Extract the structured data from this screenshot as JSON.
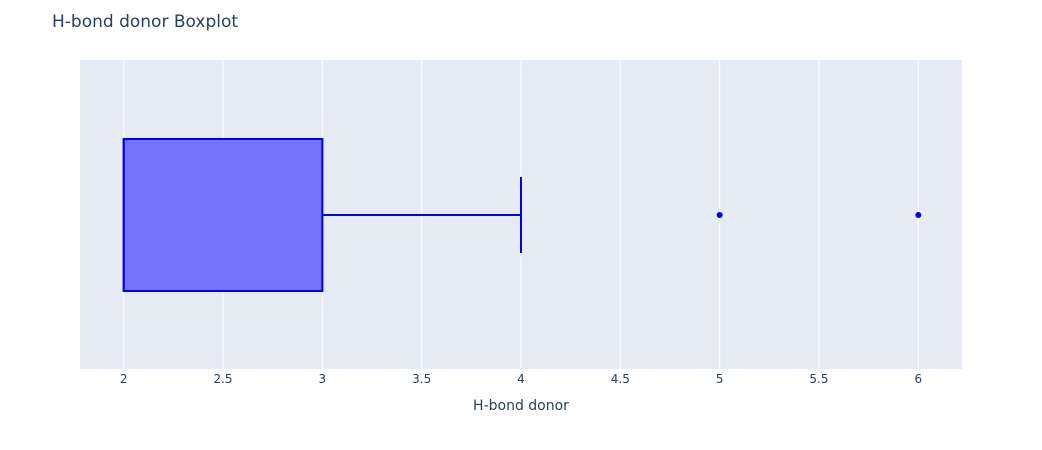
{
  "chart_data": {
    "type": "box",
    "title": "H-bond donor Boxplot",
    "xlabel": "H-bond donor",
    "ylabel": "",
    "orientation": "horizontal",
    "xlim": [
      1.78,
      6.22
    ],
    "x_ticks": [
      2,
      2.5,
      3,
      3.5,
      4,
      4.5,
      5,
      5.5,
      6
    ],
    "x_tick_labels": [
      "2",
      "2.5",
      "3",
      "3.5",
      "4",
      "4.5",
      "5",
      "5.5",
      "6"
    ],
    "grid": true,
    "box": {
      "min": 2,
      "q1": 2,
      "median": 2,
      "q3": 3,
      "whisker_low": 2,
      "whisker_high": 4,
      "outliers": [
        5,
        6
      ]
    },
    "colors": {
      "box_fill": "#7474fb",
      "box_line": "#0000ee",
      "plot_bg": "#e5ecf6",
      "grid": "#ffffff",
      "text": "#2a3f5f"
    }
  }
}
